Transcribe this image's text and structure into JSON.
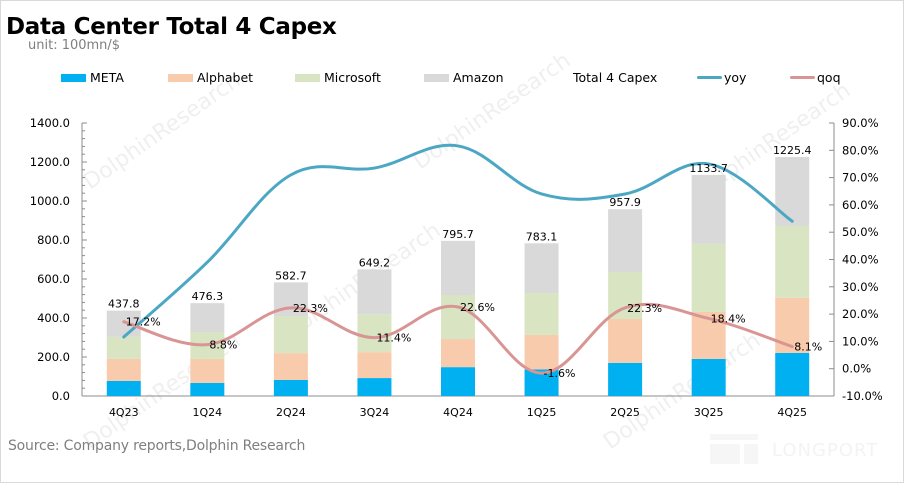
{
  "header": {
    "title": "Data Center Total 4 Capex",
    "unit": "unit: 100mn/$"
  },
  "legend": [
    {
      "name": "META",
      "kind": "bar",
      "color": "#00b0f0"
    },
    {
      "name": "Alphabet",
      "kind": "bar",
      "color": "#f8cbad"
    },
    {
      "name": "Microsoft",
      "kind": "bar",
      "color": "#d9e5c2"
    },
    {
      "name": "Amazon",
      "kind": "bar",
      "color": "#d9d9d9"
    },
    {
      "name": "Total 4 Capex",
      "kind": "none",
      "color": "#ffffff"
    },
    {
      "name": "yoy",
      "kind": "line",
      "color": "#4ba7c3"
    },
    {
      "name": "qoq",
      "kind": "line",
      "color": "#d99594"
    }
  ],
  "footer": {
    "source": "Source: Company reports,Dolphin Research",
    "logo_text": "LONGPORT",
    "watermark": "DolphinResearch"
  },
  "chart_data": {
    "type": "bar",
    "title": "Data Center Total 4 Capex",
    "subtitle": "unit: 100mn/$",
    "xlabel": "",
    "ylabel": "",
    "categories": [
      "4Q23",
      "1Q24",
      "2Q24",
      "3Q24",
      "4Q24",
      "1Q25",
      "2Q25",
      "3Q25",
      "4Q25"
    ],
    "stacked": true,
    "series": [
      {
        "name": "META",
        "type": "bar",
        "axis": "left",
        "color": "#00b0f0",
        "values": [
          77,
          67,
          82,
          92,
          148,
          136,
          170,
          190,
          221
        ]
      },
      {
        "name": "Alphabet",
        "type": "bar",
        "axis": "left",
        "color": "#f8cbad",
        "values": [
          113,
          123,
          138,
          133,
          144,
          177,
          225,
          241,
          282
        ]
      },
      {
        "name": "Microsoft",
        "type": "bar",
        "axis": "left",
        "color": "#d9e5c2",
        "values": [
          113,
          138,
          190,
          195,
          226,
          215,
          241,
          349,
          369
        ]
      },
      {
        "name": "Amazon",
        "type": "bar",
        "axis": "left",
        "color": "#d9d9d9",
        "values": [
          134.8,
          148.3,
          172.7,
          229.2,
          277.7,
          255.1,
          321.9,
          353.7,
          353.4
        ]
      },
      {
        "name": "yoy",
        "type": "line",
        "axis": "right",
        "color": "#4ba7c3",
        "values": [
          11.6,
          39,
          71,
          73.5,
          81.6,
          64,
          64,
          75,
          54
        ]
      },
      {
        "name": "qoq",
        "type": "line",
        "axis": "right",
        "color": "#d99594",
        "values": [
          17.2,
          8.8,
          22.3,
          11.4,
          22.6,
          -1.6,
          22.3,
          18.4,
          8.1
        ]
      }
    ],
    "totals": {
      "name": "Total 4 Capex",
      "values": [
        437.8,
        476.3,
        582.7,
        649.2,
        795.7,
        783.1,
        957.9,
        1133.7,
        1225.4
      ],
      "labels": [
        "437.8",
        "476.3",
        "582.7",
        "649.2",
        "795.7",
        "783.1",
        "957.9",
        "1133.7",
        "1225.4"
      ]
    },
    "qoq_labels": [
      "17.2%",
      "8.8%",
      "22.3%",
      "11.4%",
      "22.6%",
      "-1.6%",
      "22.3%",
      "18.4%",
      "8.1%"
    ],
    "left_axis": {
      "ylim": [
        0,
        1400
      ],
      "ticks": [
        0,
        200,
        400,
        600,
        800,
        1000,
        1200,
        1400
      ],
      "tick_labels": [
        "0.0",
        "200.0",
        "400.0",
        "600.0",
        "800.0",
        "1000.0",
        "1200.0",
        "1400.0"
      ]
    },
    "right_axis": {
      "ylim": [
        -10,
        90
      ],
      "ticks": [
        -10,
        0,
        10,
        20,
        30,
        40,
        50,
        60,
        70,
        80,
        90
      ],
      "tick_labels": [
        "-10.0%",
        "0.0%",
        "10.0%",
        "20.0%",
        "30.0%",
        "40.0%",
        "50.0%",
        "60.0%",
        "70.0%",
        "80.0%",
        "90.0%"
      ]
    },
    "grid": false,
    "legend_position": "top"
  }
}
